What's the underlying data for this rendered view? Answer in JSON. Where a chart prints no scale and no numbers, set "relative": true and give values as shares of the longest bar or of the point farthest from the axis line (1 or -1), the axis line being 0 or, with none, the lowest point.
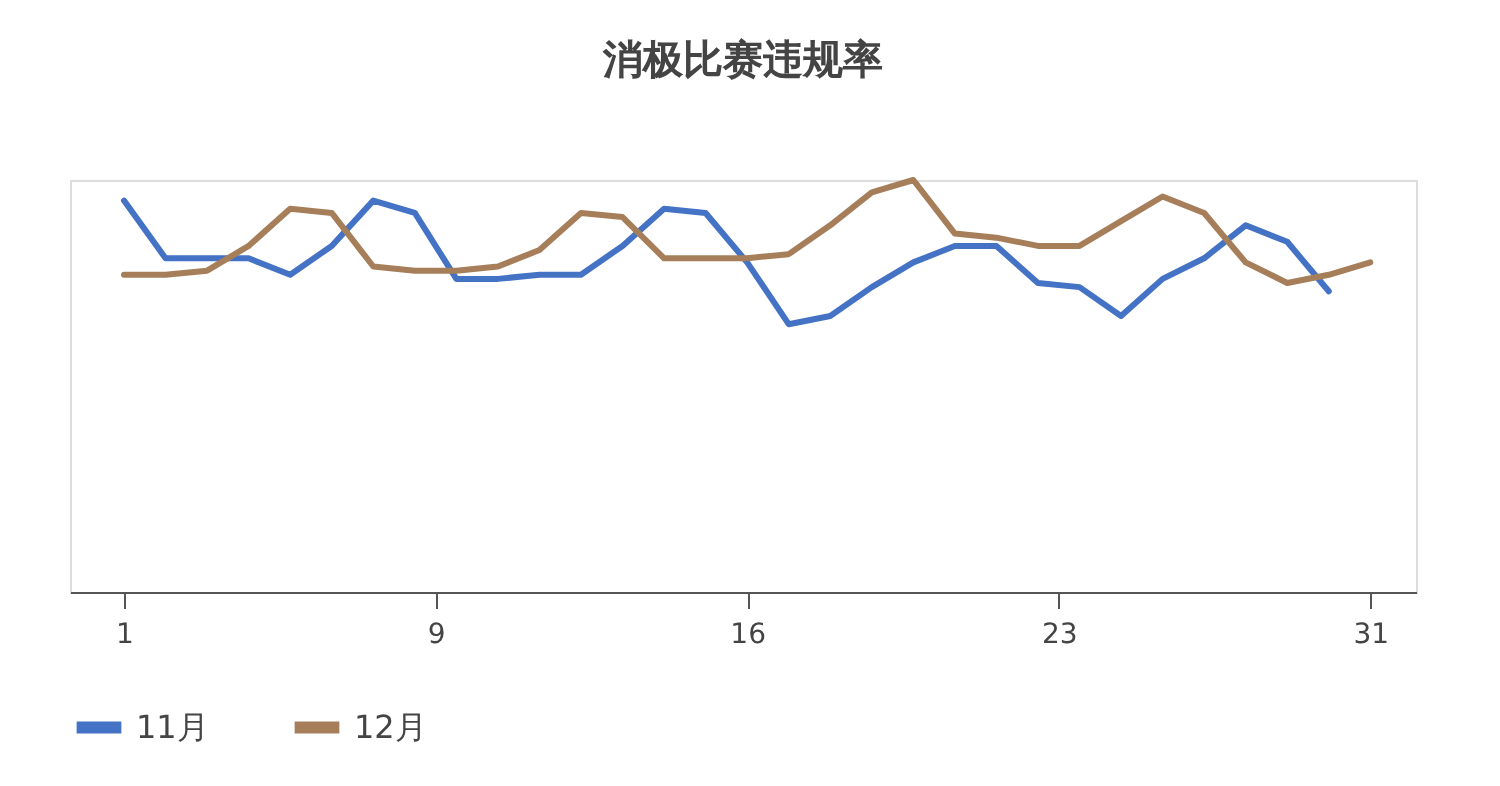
{
  "chart_data": {
    "type": "line",
    "title": "消极比赛违规率",
    "relative": true,
    "x": [
      1,
      2,
      3,
      4,
      5,
      6,
      7,
      8,
      9,
      10,
      11,
      12,
      13,
      14,
      15,
      16,
      17,
      18,
      19,
      20,
      21,
      22,
      23,
      24,
      25,
      26,
      27,
      28,
      29,
      30,
      31
    ],
    "xlim": [
      -0.3,
      32.1
    ],
    "xticks": [
      1,
      {
        "value": 8.5,
        "label": "9"
      },
      16,
      {
        "value": 23.5,
        "label": "23"
      },
      31
    ],
    "series": [
      {
        "name": "11月",
        "color": "#4472c4",
        "values": [
          0.95,
          0.81,
          0.81,
          0.81,
          0.77,
          0.84,
          0.95,
          0.92,
          0.76,
          0.76,
          0.77,
          0.77,
          0.84,
          0.93,
          0.92,
          0.8,
          0.65,
          0.67,
          0.74,
          0.8,
          0.84,
          0.84,
          0.75,
          0.74,
          0.67,
          0.76,
          0.81,
          0.89,
          0.85,
          0.73,
          null
        ]
      },
      {
        "name": "12月",
        "color": "#a67f5a",
        "values": [
          0.77,
          0.77,
          0.78,
          0.84,
          0.93,
          0.92,
          0.79,
          0.78,
          0.78,
          0.79,
          0.83,
          0.92,
          0.91,
          0.81,
          0.81,
          0.81,
          0.82,
          0.89,
          0.97,
          1.0,
          0.87,
          0.86,
          0.84,
          0.84,
          0.9,
          0.96,
          0.92,
          0.8,
          0.75,
          0.77,
          0.8
        ]
      }
    ],
    "grid": false,
    "legend": "bottom",
    "marker": "none",
    "line_style": "solid"
  }
}
